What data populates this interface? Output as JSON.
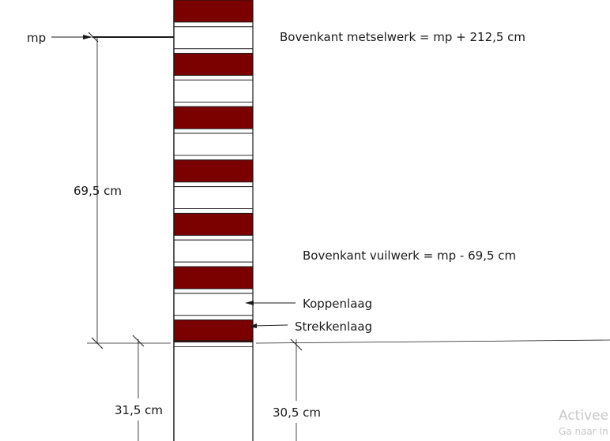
{
  "labels": {
    "mp": "mp",
    "top_masonry": "Bovenkant metselwerk = mp + 212,5 cm",
    "top_foundation": "Bovenkant vuilwerk = mp - 69,5 cm",
    "header_course": "Koppenlaag",
    "stretcher_course": "Strekkenlaag",
    "height_dim": "69,5 cm",
    "left_dim": "31,5 cm",
    "right_dim": "30,5 cm"
  },
  "watermark": {
    "line1": "Activee",
    "line2": "Ga naar In"
  },
  "colors": {
    "brick": "#7b0000",
    "header": "#ffffff",
    "line": "#1a1a1a",
    "mortar": "#000000"
  },
  "courses": [
    "strekken",
    "koppen",
    "strekken",
    "koppen",
    "strekken",
    "koppen",
    "strekken",
    "koppen",
    "strekken",
    "koppen",
    "strekken",
    "koppen",
    "strekken"
  ]
}
